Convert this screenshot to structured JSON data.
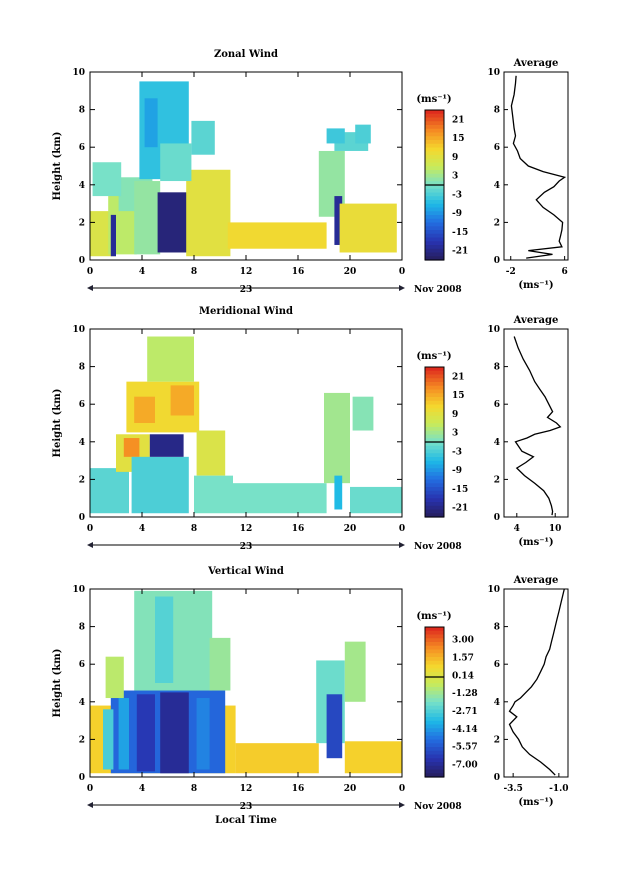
{
  "chart_data": [
    {
      "type": "heatmap",
      "title": "Zonal Wind",
      "xlabel": "",
      "ylabel": "Height (km)",
      "xlim": [
        0,
        24
      ],
      "ylim": [
        0,
        10
      ],
      "x_ticks": [
        "0",
        "4",
        "8",
        "12",
        "16",
        "20",
        "0"
      ],
      "y_ticks": [
        "0",
        "2",
        "4",
        "6",
        "8",
        "10"
      ],
      "date_day": "23",
      "date_month_year": "Nov 2008",
      "colorbar": {
        "unit": "(ms⁻¹)",
        "range": [
          -24,
          24
        ],
        "ticks": [
          21,
          15,
          9,
          3,
          -3,
          -9,
          -15,
          -21
        ],
        "tick_labels": [
          "21",
          "15",
          "9",
          "3",
          "-3",
          "-9",
          "-15",
          "-21"
        ]
      },
      "patches": [
        {
          "t0": 0,
          "t1": 2,
          "h0": 0.2,
          "h1": 2.6,
          "v": 8
        },
        {
          "t0": 1.4,
          "t1": 3.6,
          "h0": 0.3,
          "h1": 3.8,
          "v": 5
        },
        {
          "t0": 2.2,
          "t1": 4.8,
          "h0": 2.6,
          "h1": 4.4,
          "v": 1
        },
        {
          "t0": 3.4,
          "t1": 5.4,
          "h0": 0.3,
          "h1": 4.2,
          "v": 2
        },
        {
          "t0": 5.2,
          "t1": 7.8,
          "h0": 0.4,
          "h1": 3.6,
          "v": -22
        },
        {
          "t0": 7.4,
          "t1": 10.8,
          "h0": 0.2,
          "h1": 4.8,
          "v": 9
        },
        {
          "t0": 3.8,
          "t1": 7.6,
          "h0": 4.3,
          "h1": 9.5,
          "v": -5
        },
        {
          "t0": 5.4,
          "t1": 7.8,
          "h0": 4.2,
          "h1": 6.2,
          "v": -1
        },
        {
          "t0": 4.2,
          "t1": 5.2,
          "h0": 6,
          "h1": 8.6,
          "v": -8
        },
        {
          "t0": 7.8,
          "t1": 9.6,
          "h0": 5.6,
          "h1": 7.4,
          "v": -2
        },
        {
          "t0": 10.6,
          "t1": 18.2,
          "h0": 0.6,
          "h1": 2,
          "v": 11
        },
        {
          "t0": 17.6,
          "t1": 19.6,
          "h0": 2.3,
          "h1": 5.8,
          "v": 2
        },
        {
          "t0": 18.8,
          "t1": 19.4,
          "h0": 0.8,
          "h1": 3.4,
          "v": -20
        },
        {
          "t0": 19.2,
          "t1": 23.6,
          "h0": 0.4,
          "h1": 3,
          "v": 10
        },
        {
          "t0": 18.8,
          "t1": 21.4,
          "h0": 5.8,
          "h1": 6.8,
          "v": -2
        },
        {
          "t0": 18.2,
          "t1": 19.6,
          "h0": 6.2,
          "h1": 7,
          "v": -4
        },
        {
          "t0": 0.2,
          "t1": 2.4,
          "h0": 3.4,
          "h1": 5.2,
          "v": 0
        },
        {
          "t0": 1.6,
          "t1": 2,
          "h0": 0.2,
          "h1": 2.4,
          "v": -20
        },
        {
          "t0": 20.4,
          "t1": 21.6,
          "h0": 6.2,
          "h1": 7.2,
          "v": -3
        }
      ],
      "profile": {
        "title": "Average",
        "xlim": [
          -3,
          6.5
        ],
        "x_ticks": [
          "-2",
          "6"
        ],
        "x_tick_values": [
          -2,
          6
        ],
        "xlabel": "(ms⁻¹)",
        "h": [
          0.1,
          0.3,
          0.5,
          0.7,
          1.0,
          1.3,
          1.6,
          2.0,
          2.4,
          2.8,
          3.2,
          3.6,
          3.9,
          4.2,
          4.4,
          4.7,
          5.0,
          5.4,
          5.8,
          6.2,
          6.6,
          7.0,
          7.6,
          8.2,
          8.8,
          9.4,
          9.8
        ],
        "v": [
          0.3,
          4.2,
          0.6,
          5.6,
          5.2,
          5.4,
          5.6,
          5.7,
          4.4,
          2.8,
          1.8,
          3.0,
          4.4,
          5.2,
          6.0,
          2.8,
          0.6,
          -0.6,
          -1.0,
          -1.6,
          -1.3,
          -1.5,
          -1.7,
          -1.9,
          -1.5,
          -1.3,
          -1.2
        ]
      }
    },
    {
      "type": "heatmap",
      "title": "Meridional Wind",
      "xlabel": "",
      "ylabel": "Height (km)",
      "xlim": [
        0,
        24
      ],
      "ylim": [
        0,
        10
      ],
      "x_ticks": [
        "0",
        "4",
        "8",
        "12",
        "16",
        "20",
        "0"
      ],
      "y_ticks": [
        "0",
        "2",
        "4",
        "6",
        "8",
        "10"
      ],
      "date_day": "23",
      "date_month_year": "Nov 2008",
      "colorbar": {
        "unit": "(ms⁻¹)",
        "range": [
          -24,
          24
        ],
        "ticks": [
          21,
          15,
          9,
          3,
          -3,
          -9,
          -15,
          -21
        ],
        "tick_labels": [
          "21",
          "15",
          "9",
          "3",
          "-3",
          "-9",
          "-15",
          "-21"
        ]
      },
      "patches": [
        {
          "t0": 0,
          "t1": 3,
          "h0": 0.2,
          "h1": 2.6,
          "v": -2
        },
        {
          "t0": 2,
          "t1": 4.6,
          "h0": 2.4,
          "h1": 4.4,
          "v": 9
        },
        {
          "t0": 2.6,
          "t1": 3.8,
          "h0": 3.2,
          "h1": 4.2,
          "v": 17
        },
        {
          "t0": 3.2,
          "t1": 7.6,
          "h0": 0.2,
          "h1": 3.2,
          "v": -3
        },
        {
          "t0": 4.6,
          "t1": 7.2,
          "h0": 3.2,
          "h1": 4.4,
          "v": -21
        },
        {
          "t0": 2.8,
          "t1": 8.4,
          "h0": 4.5,
          "h1": 7.2,
          "v": 11
        },
        {
          "t0": 3.4,
          "t1": 5.0,
          "h0": 5.0,
          "h1": 6.4,
          "v": 15
        },
        {
          "t0": 6.2,
          "t1": 8.0,
          "h0": 5.4,
          "h1": 7.0,
          "v": 15
        },
        {
          "t0": 4.4,
          "t1": 8.0,
          "h0": 7.2,
          "h1": 9.6,
          "v": 5
        },
        {
          "t0": 8.2,
          "t1": 10.4,
          "h0": 2.2,
          "h1": 4.6,
          "v": 8
        },
        {
          "t0": 8,
          "t1": 11,
          "h0": 0.2,
          "h1": 2.2,
          "v": 0
        },
        {
          "t0": 11,
          "t1": 18.2,
          "h0": 0.2,
          "h1": 1.8,
          "v": 0
        },
        {
          "t0": 18,
          "t1": 20,
          "h0": 1.8,
          "h1": 6.6,
          "v": 3
        },
        {
          "t0": 20,
          "t1": 24,
          "h0": 0.2,
          "h1": 1.6,
          "v": -1
        },
        {
          "t0": 18.8,
          "t1": 19.4,
          "h0": 0.4,
          "h1": 2.2,
          "v": -6
        },
        {
          "t0": 20.2,
          "t1": 21.8,
          "h0": 4.6,
          "h1": 6.4,
          "v": 1
        }
      ],
      "profile": {
        "title": "Average",
        "xlim": [
          2,
          12
        ],
        "x_ticks": [
          "4",
          "10"
        ],
        "x_tick_values": [
          4,
          10
        ],
        "xlabel": "(ms⁻¹)",
        "h": [
          0.1,
          0.3,
          0.6,
          1.0,
          1.4,
          1.8,
          2.2,
          2.6,
          2.9,
          3.2,
          3.5,
          3.8,
          4.0,
          4.2,
          4.4,
          4.6,
          4.8,
          5.0,
          5.3,
          5.6,
          6.0,
          6.4,
          6.8,
          7.2,
          7.8,
          8.4,
          9.0,
          9.6
        ],
        "v": [
          9.5,
          9.6,
          9.4,
          9.0,
          8.2,
          6.8,
          5.2,
          4.0,
          5.4,
          6.6,
          4.8,
          4.2,
          3.8,
          5.6,
          6.8,
          9.2,
          10.8,
          10.2,
          8.8,
          9.6,
          9.0,
          8.4,
          7.6,
          6.8,
          6.0,
          5.0,
          4.2,
          3.6
        ]
      }
    },
    {
      "type": "heatmap",
      "title": "Vertical Wind",
      "xlabel": "Local Time",
      "ylabel": "Height (km)",
      "xlim": [
        0,
        24
      ],
      "ylim": [
        0,
        10
      ],
      "x_ticks": [
        "0",
        "4",
        "8",
        "12",
        "16",
        "20",
        "0"
      ],
      "y_ticks": [
        "0",
        "2",
        "4",
        "6",
        "8",
        "10"
      ],
      "date_day": "23",
      "date_month_year": "Nov 2008",
      "colorbar": {
        "unit": "(ms⁻¹)",
        "range": [
          -8,
          4
        ],
        "ticks": [
          3.0,
          1.57,
          0.14,
          -1.28,
          -2.71,
          -4.14,
          -5.57,
          -7.0
        ],
        "tick_labels": [
          "3.00",
          "1.57",
          "0.14",
          "-1.28",
          "-2.71",
          "-4.14",
          "-5.57",
          "-7.00"
        ]
      },
      "patches": [
        {
          "t0": 0,
          "t1": 11.2,
          "h0": 0.2,
          "h1": 3.8,
          "v": 1.0
        },
        {
          "t0": 11.2,
          "t1": 17.6,
          "h0": 0.2,
          "h1": 1.8,
          "v": 1.1
        },
        {
          "t0": 19.6,
          "t1": 24,
          "h0": 0.2,
          "h1": 1.9,
          "v": 1.0
        },
        {
          "t0": 1.6,
          "t1": 10.4,
          "h0": 0.2,
          "h1": 4.6,
          "v": -5.2
        },
        {
          "t0": 5.4,
          "t1": 7.6,
          "h0": 0.2,
          "h1": 4.5,
          "v": -7.0
        },
        {
          "t0": 2.2,
          "t1": 3.0,
          "h0": 0.4,
          "h1": 4.2,
          "v": -4.0
        },
        {
          "t0": 3.6,
          "t1": 5.0,
          "h0": 0.3,
          "h1": 4.4,
          "v": -6.4
        },
        {
          "t0": 8.2,
          "t1": 9.2,
          "h0": 0.4,
          "h1": 4.2,
          "v": -4.6
        },
        {
          "t0": 3.4,
          "t1": 9.4,
          "h0": 4.6,
          "h1": 9.9,
          "v": -1.8
        },
        {
          "t0": 5,
          "t1": 6.4,
          "h0": 5.0,
          "h1": 9.6,
          "v": -2.6
        },
        {
          "t0": 9.2,
          "t1": 10.8,
          "h0": 4.6,
          "h1": 7.4,
          "v": -1.4
        },
        {
          "t0": 1.2,
          "t1": 2.6,
          "h0": 4.2,
          "h1": 6.4,
          "v": -0.8
        },
        {
          "t0": 17.4,
          "t1": 19.6,
          "h0": 1.8,
          "h1": 6.2,
          "v": -2.2
        },
        {
          "t0": 18.2,
          "t1": 19.4,
          "h0": 1.0,
          "h1": 4.4,
          "v": -6.0
        },
        {
          "t0": 19.6,
          "t1": 21.2,
          "h0": 4.0,
          "h1": 7.2,
          "v": -1.2
        },
        {
          "t0": 1.0,
          "t1": 1.8,
          "h0": 0.4,
          "h1": 3.6,
          "v": -2.8
        }
      ],
      "profile": {
        "title": "Average",
        "xlim": [
          -4.0,
          -0.5
        ],
        "x_ticks": [
          "-3.5",
          "-1.0"
        ],
        "x_tick_values": [
          -3.5,
          -1.0
        ],
        "xlabel": "(ms⁻¹)",
        "h": [
          0.1,
          0.4,
          0.8,
          1.2,
          1.6,
          2.0,
          2.4,
          2.8,
          3.2,
          3.5,
          3.8,
          4.0,
          4.2,
          4.5,
          4.8,
          5.2,
          5.6,
          6.0,
          6.4,
          6.8,
          7.2,
          7.6,
          8.0,
          8.4,
          8.8,
          9.2,
          9.6,
          10.0
        ],
        "v": [
          -1.2,
          -1.5,
          -2.0,
          -2.6,
          -3.0,
          -3.2,
          -3.5,
          -3.7,
          -3.3,
          -3.7,
          -3.5,
          -3.4,
          -3.1,
          -2.8,
          -2.5,
          -2.2,
          -2.0,
          -1.8,
          -1.7,
          -1.5,
          -1.4,
          -1.3,
          -1.2,
          -1.1,
          -1.0,
          -0.9,
          -0.8,
          -0.7
        ]
      }
    }
  ]
}
